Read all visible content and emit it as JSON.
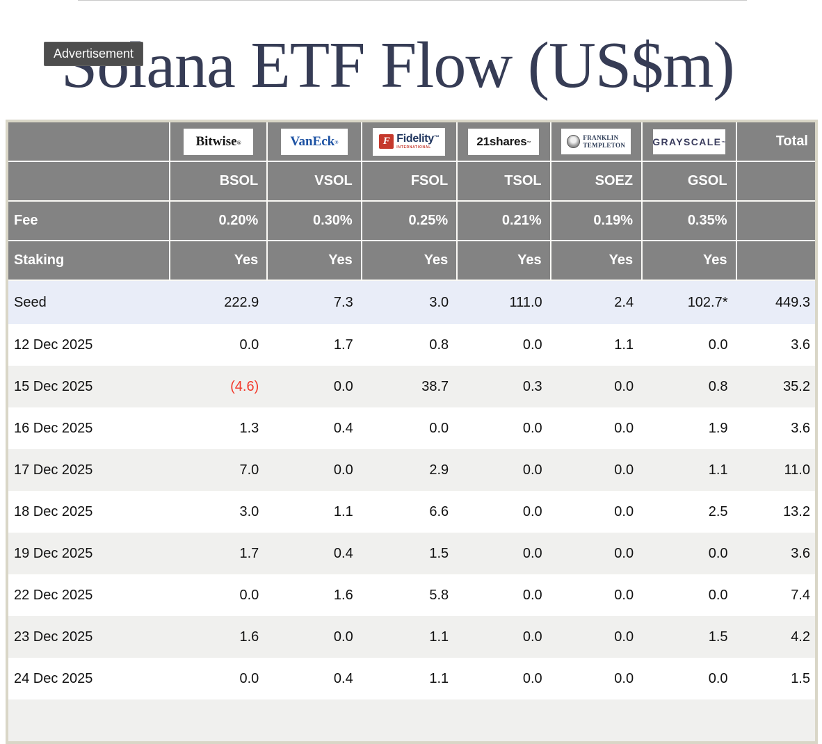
{
  "header": {
    "title": "Solana ETF Flow (US$m)",
    "ad_badge": "Advertisement"
  },
  "colors": {
    "title_navy": "#363c55",
    "header_gray": "#838383",
    "table_border_beige": "#d9d6c7",
    "seed_row_highlight": "#e9edf8",
    "alt_row_gray": "#f0f0ee",
    "negative_red": "#f23b2d",
    "fidelity_red": "#c5382c",
    "vaneck_blue": "#1d52a3"
  },
  "table": {
    "logos": {
      "bitwise": {
        "text": "Bitwise",
        "mark": "®"
      },
      "vaneck": {
        "text": "VanEck",
        "mark": "®"
      },
      "fidelity": {
        "f": "F",
        "text": "Fidelity",
        "mark": "™",
        "sub": "INTERNATIONAL"
      },
      "shares21": {
        "text": "21shares",
        "mark": "™"
      },
      "franklin": {
        "line1": "FRANKLIN",
        "line2": "TEMPLETON"
      },
      "grayscale": {
        "text": "GRAYSCALE",
        "mark": "™"
      }
    },
    "total_label": "Total",
    "tickers": [
      "BSOL",
      "VSOL",
      "FSOL",
      "TSOL",
      "SOEZ",
      "GSOL"
    ],
    "fee": {
      "label": "Fee",
      "values": [
        "0.20%",
        "0.30%",
        "0.25%",
        "0.21%",
        "0.19%",
        "0.35%"
      ]
    },
    "staking": {
      "label": "Staking",
      "values": [
        "Yes",
        "Yes",
        "Yes",
        "Yes",
        "Yes",
        "Yes"
      ]
    },
    "rows": [
      {
        "label": "Seed",
        "values": [
          "222.9",
          "7.3",
          "3.0",
          "111.0",
          "2.4",
          "102.7*"
        ],
        "total": "449.3"
      },
      {
        "label": "12 Dec 2025",
        "values": [
          "0.0",
          "1.7",
          "0.8",
          "0.0",
          "1.1",
          "0.0"
        ],
        "total": "3.6"
      },
      {
        "label": "15 Dec 2025",
        "values": [
          "(4.6)",
          "0.0",
          "38.7",
          "0.3",
          "0.0",
          "0.8"
        ],
        "total": "35.2"
      },
      {
        "label": "16 Dec 2025",
        "values": [
          "1.3",
          "0.4",
          "0.0",
          "0.0",
          "0.0",
          "1.9"
        ],
        "total": "3.6"
      },
      {
        "label": "17 Dec 2025",
        "values": [
          "7.0",
          "0.0",
          "2.9",
          "0.0",
          "0.0",
          "1.1"
        ],
        "total": "11.0"
      },
      {
        "label": "18 Dec 2025",
        "values": [
          "3.0",
          "1.1",
          "6.6",
          "0.0",
          "0.0",
          "2.5"
        ],
        "total": "13.2"
      },
      {
        "label": "19 Dec 2025",
        "values": [
          "1.7",
          "0.4",
          "1.5",
          "0.0",
          "0.0",
          "0.0"
        ],
        "total": "3.6"
      },
      {
        "label": "22 Dec 2025",
        "values": [
          "0.0",
          "1.6",
          "5.8",
          "0.0",
          "0.0",
          "0.0"
        ],
        "total": "7.4"
      },
      {
        "label": "23 Dec 2025",
        "values": [
          "1.6",
          "0.0",
          "1.1",
          "0.0",
          "0.0",
          "1.5"
        ],
        "total": "4.2"
      },
      {
        "label": "24 Dec 2025",
        "values": [
          "0.0",
          "0.4",
          "1.1",
          "0.0",
          "0.0",
          "0.0"
        ],
        "total": "1.5"
      }
    ]
  }
}
